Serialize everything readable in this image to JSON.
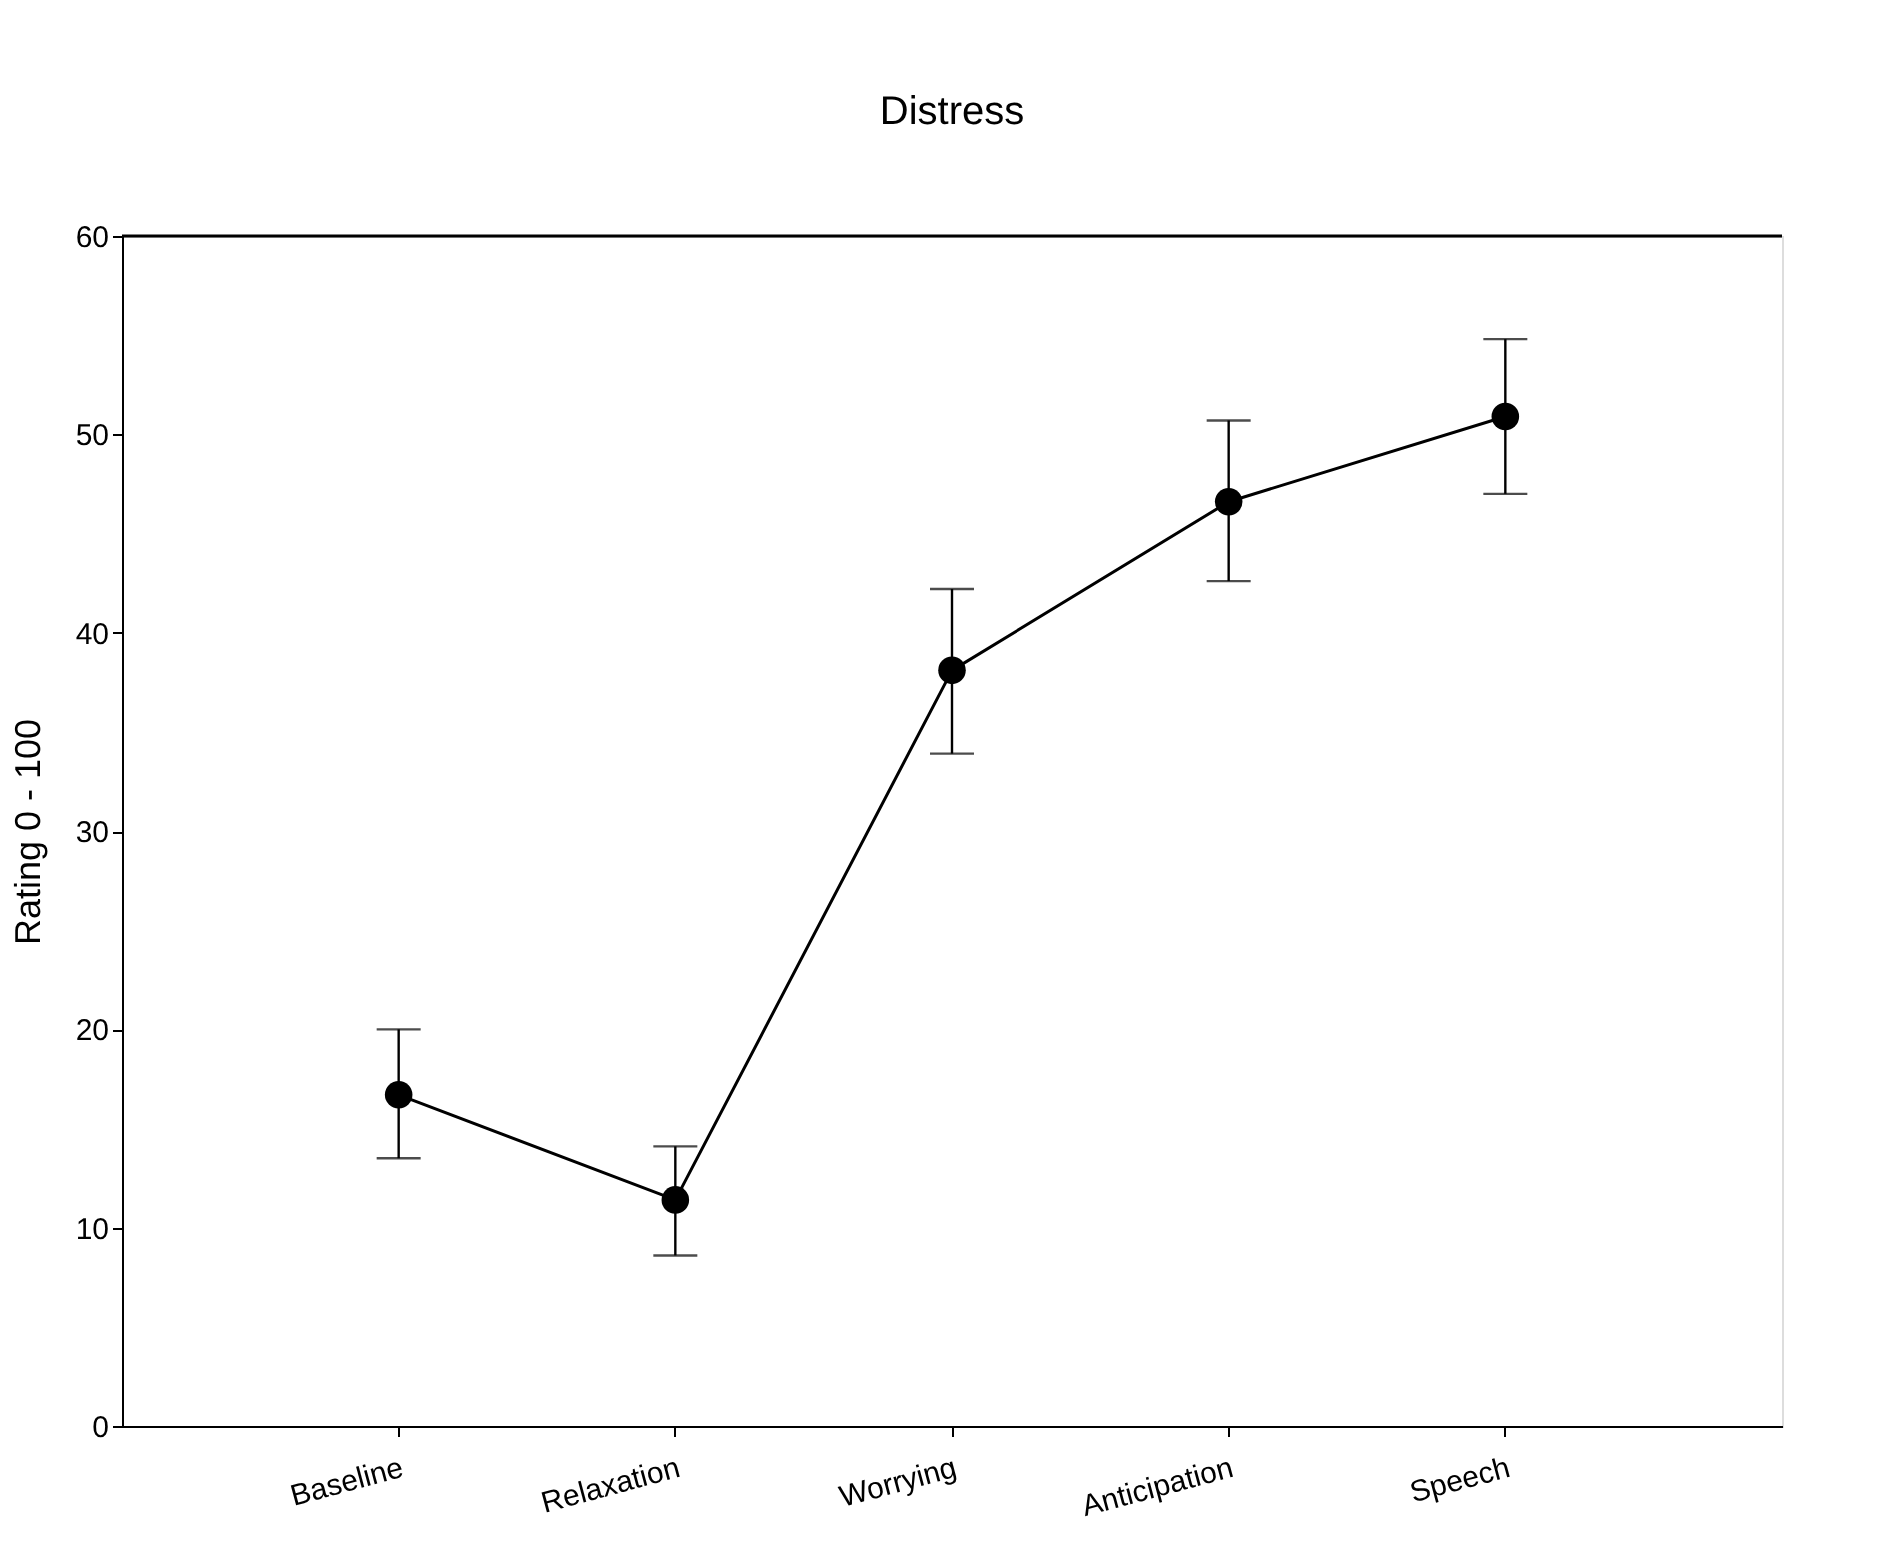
{
  "chart_data": {
    "type": "line",
    "title": "Distress",
    "ylabel": "Rating 0 - 100",
    "categories": [
      "Baseline",
      "Relaxation",
      "Worrying",
      "Anticipation",
      "Speech"
    ],
    "values": [
      16.7,
      11.4,
      38.1,
      46.6,
      50.9
    ],
    "errors": [
      [
        13.5,
        20.0
      ],
      [
        8.6,
        14.1
      ],
      [
        33.9,
        42.2
      ],
      [
        42.6,
        50.7
      ],
      [
        47.0,
        54.8
      ]
    ],
    "color": "#000000",
    "marker": "circle",
    "line_style": "solid",
    "ylim": [
      0,
      60
    ],
    "yticks": [
      0,
      10,
      20,
      30,
      40,
      50,
      60
    ],
    "grid": false
  }
}
